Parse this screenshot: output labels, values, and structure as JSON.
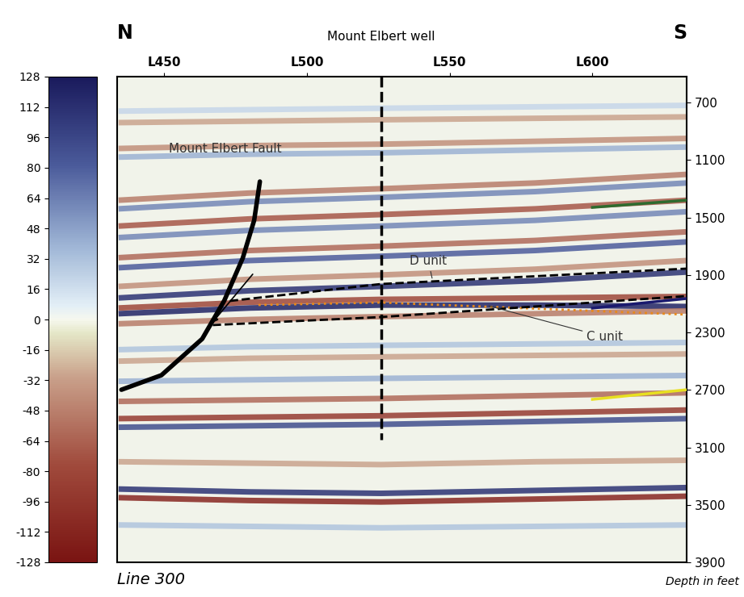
{
  "chart_data": {
    "type": "seismic_section",
    "labels": {
      "north": "N",
      "south": "S",
      "line": "Line 300",
      "depth_label": "Depth in feet"
    },
    "xlim": [
      433.5,
      633
    ],
    "xticks": [
      {
        "value": 450,
        "label": "L450"
      },
      {
        "value": 500,
        "label": "L500"
      },
      {
        "value": 550,
        "label": "L550"
      },
      {
        "value": 600,
        "label": "L600"
      }
    ],
    "ylim": [
      3900,
      520
    ],
    "yticks": [
      700,
      1100,
      1500,
      1900,
      2300,
      2700,
      3100,
      3500,
      3900
    ],
    "colorbar": {
      "lim": [
        -128,
        128
      ],
      "ticks": [
        128,
        112,
        96,
        80,
        64,
        48,
        32,
        16,
        0,
        -16,
        -32,
        -48,
        -64,
        -80,
        -96,
        -112,
        -128
      ]
    },
    "reflectors": [
      {
        "x": [
          434,
          480,
          526,
          580,
          633
        ],
        "depth": [
          760,
          750,
          740,
          730,
          720
        ],
        "amplitude": 20
      },
      {
        "x": [
          434,
          480,
          526,
          580,
          633
        ],
        "depth": [
          840,
          830,
          820,
          810,
          800
        ],
        "amplitude": -30
      },
      {
        "x": [
          434,
          480,
          526,
          580,
          633
        ],
        "depth": [
          1020,
          1000,
          990,
          970,
          950
        ],
        "amplitude": -40
      },
      {
        "x": [
          434,
          480,
          526,
          580,
          633
        ],
        "depth": [
          1080,
          1060,
          1050,
          1030,
          1010
        ],
        "amplitude": 40
      },
      {
        "x": [
          434,
          480,
          526,
          580,
          633
        ],
        "depth": [
          1380,
          1330,
          1300,
          1260,
          1200
        ],
        "amplitude": -50
      },
      {
        "x": [
          434,
          480,
          526,
          580,
          633
        ],
        "depth": [
          1440,
          1390,
          1360,
          1320,
          1260
        ],
        "amplitude": 60
      },
      {
        "x": [
          434,
          480,
          526,
          580,
          633
        ],
        "depth": [
          1560,
          1510,
          1480,
          1440,
          1380
        ],
        "amplitude": -70
      },
      {
        "x": [
          434,
          480,
          526,
          580,
          633
        ],
        "depth": [
          1640,
          1590,
          1560,
          1520,
          1460
        ],
        "amplitude": 60
      },
      {
        "x": [
          434,
          480,
          526,
          580,
          633
        ],
        "depth": [
          1780,
          1730,
          1700,
          1660,
          1600
        ],
        "amplitude": -60
      },
      {
        "x": [
          434,
          480,
          526,
          580,
          633
        ],
        "depth": [
          1850,
          1800,
          1770,
          1730,
          1670
        ],
        "amplitude": 80
      },
      {
        "x": [
          434,
          480,
          526,
          580,
          633
        ],
        "depth": [
          1980,
          1930,
          1900,
          1860,
          1800
        ],
        "amplitude": -40
      },
      {
        "x": [
          434,
          480,
          526,
          580,
          633
        ],
        "depth": [
          2060,
          2010,
          1980,
          1940,
          1880
        ],
        "amplitude": 110
      },
      {
        "x": [
          434,
          480,
          526,
          580,
          633
        ],
        "depth": [
          2130,
          2090,
          2070,
          2060,
          2050
        ],
        "amplitude": -80
      },
      {
        "x": [
          434,
          480,
          526,
          580,
          633
        ],
        "depth": [
          2170,
          2130,
          2110,
          2110,
          2120
        ],
        "amplitude": 120
      },
      {
        "x": [
          434,
          480,
          526,
          580,
          633
        ],
        "depth": [
          2240,
          2210,
          2190,
          2170,
          2150
        ],
        "amplitude": -50
      },
      {
        "x": [
          434,
          480,
          526,
          580,
          633
        ],
        "depth": [
          2420,
          2400,
          2390,
          2380,
          2370
        ],
        "amplitude": 30
      },
      {
        "x": [
          434,
          480,
          526,
          580,
          633
        ],
        "depth": [
          2500,
          2480,
          2470,
          2460,
          2450
        ],
        "amplitude": -30
      },
      {
        "x": [
          434,
          480,
          526,
          580,
          633
        ],
        "depth": [
          2640,
          2630,
          2620,
          2610,
          2600
        ],
        "amplitude": 40
      },
      {
        "x": [
          434,
          480,
          526,
          580,
          633
        ],
        "depth": [
          2780,
          2770,
          2760,
          2740,
          2720
        ],
        "amplitude": -60
      },
      {
        "x": [
          434,
          480,
          526,
          580,
          633
        ],
        "depth": [
          2900,
          2890,
          2880,
          2860,
          2840
        ],
        "amplitude": -90
      },
      {
        "x": [
          434,
          480,
          526,
          580,
          633
        ],
        "depth": [
          2960,
          2950,
          2940,
          2920,
          2900
        ],
        "amplitude": 90
      },
      {
        "x": [
          434,
          480,
          526,
          580,
          633
        ],
        "depth": [
          3200,
          3210,
          3220,
          3200,
          3190
        ],
        "amplitude": -30
      },
      {
        "x": [
          434,
          480,
          526,
          580,
          633
        ],
        "depth": [
          3390,
          3410,
          3420,
          3400,
          3380
        ],
        "amplitude": 110
      },
      {
        "x": [
          434,
          480,
          526,
          580,
          633
        ],
        "depth": [
          3450,
          3470,
          3480,
          3460,
          3440
        ],
        "amplitude": -110
      },
      {
        "x": [
          434,
          480,
          526,
          580,
          633
        ],
        "depth": [
          3640,
          3650,
          3660,
          3650,
          3640
        ],
        "amplitude": 30
      }
    ],
    "well": {
      "name": "Mount Elbert well",
      "x": 526,
      "depth": [
        520,
        3047
      ]
    },
    "fault": {
      "name": "Mount Elbert Fault",
      "x": [
        483.5,
        481.5,
        477.5,
        471,
        463.3,
        449,
        435
      ],
      "depth": [
        1250,
        1520,
        1783,
        2080,
        2345,
        2598,
        2699
      ]
    },
    "picks": [
      {
        "name": "D unit",
        "color": "#000000",
        "line_style": "dashed",
        "x": [
          473,
          526,
          633
        ],
        "depth": [
          2081,
          1963,
          1856
        ]
      },
      {
        "name": "C unit",
        "color": "#e8891a",
        "line_style": "dotted",
        "x": [
          483,
          526,
          633
        ],
        "depth": [
          2109,
          2092,
          2176
        ]
      },
      {
        "name": null,
        "color": "#000000",
        "line_style": "dashed",
        "x": [
          467,
          526,
          633
        ],
        "depth": [
          2249,
          2193,
          2047
        ]
      },
      {
        "name": null,
        "color": "#2e6b2e",
        "line_style": "solid",
        "x": [
          600,
          633
        ],
        "depth": [
          1430,
          1380
        ]
      },
      {
        "name": null,
        "color": "#1a1a6e",
        "line_style": "solid",
        "x": [
          600,
          633
        ],
        "depth": [
          2131,
          2064
        ]
      },
      {
        "name": null,
        "color": "#e8e020",
        "line_style": "solid",
        "x": [
          600,
          633
        ],
        "depth": [
          2766,
          2699
        ]
      }
    ]
  }
}
